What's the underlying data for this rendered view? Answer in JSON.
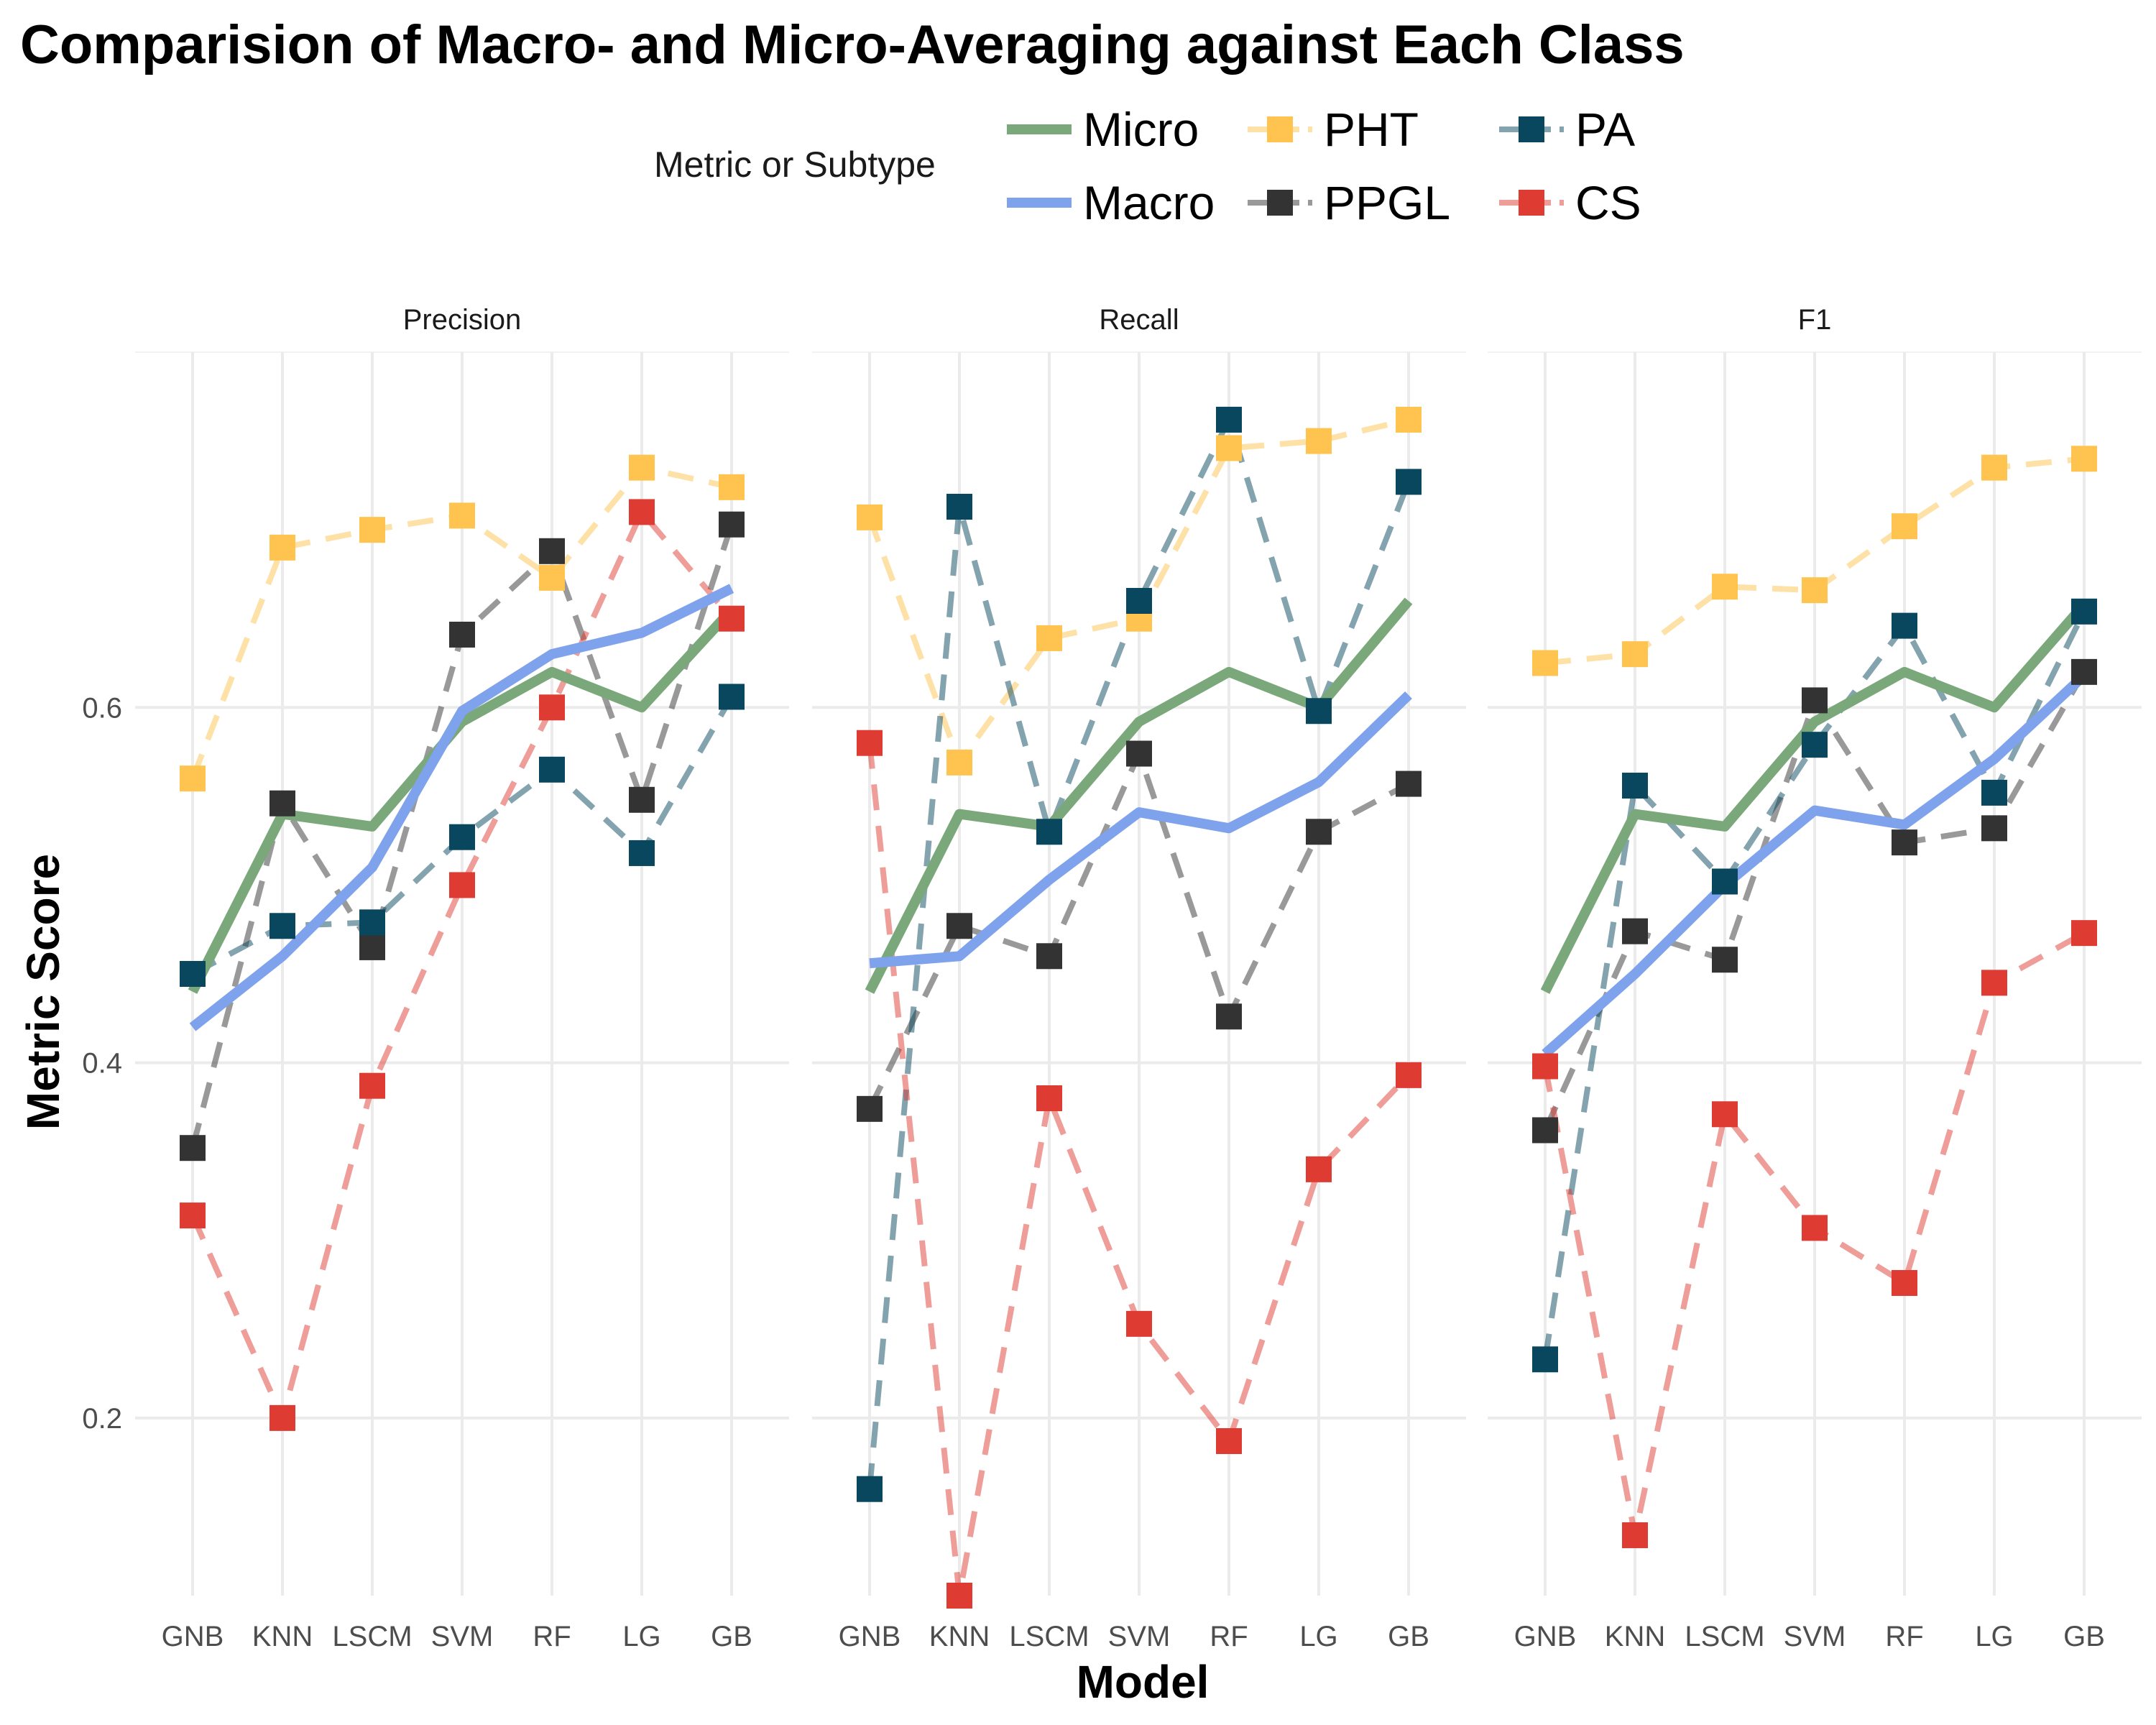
{
  "chart_data": {
    "type": "line",
    "title": "Comparision of Macro- and Micro-Averaging against Each Class",
    "xlabel": "Model",
    "ylabel": "Metric Score",
    "legend_title": "Metric or Subtype",
    "legend_position": "top",
    "grid": true,
    "ylim": [
      0.1,
      0.8
    ],
    "yticks": [
      0.2,
      0.4,
      0.6
    ],
    "y_tick_labels": [
      "0.2",
      "0.4",
      "0.6"
    ],
    "categories": [
      "GNB",
      "KNN",
      "LSCM",
      "SVM",
      "RF",
      "LG",
      "GB"
    ],
    "series_styles": [
      {
        "name": "Micro",
        "kind": "line",
        "color": "#7aa87a"
      },
      {
        "name": "Macro",
        "kind": "line",
        "color": "#7fa2ec"
      },
      {
        "name": "PHT",
        "kind": "point",
        "color": "#fec44f"
      },
      {
        "name": "PPGL",
        "kind": "point",
        "color": "#333333"
      },
      {
        "name": "PA",
        "kind": "point",
        "color": "#08475e"
      },
      {
        "name": "CS",
        "kind": "point",
        "color": "#de3b32"
      }
    ],
    "panels": [
      {
        "name": "Precision",
        "series": [
          {
            "name": "Micro",
            "values": [
              0.44,
              0.54,
              0.533,
              0.592,
              0.62,
              0.6,
              0.655
            ]
          },
          {
            "name": "Macro",
            "values": [
              0.42,
              0.46,
              0.51,
              0.598,
              0.63,
              0.642,
              0.667
            ]
          },
          {
            "name": "PHT",
            "values": [
              0.56,
              0.69,
              0.7,
              0.708,
              0.673,
              0.735,
              0.724
            ]
          },
          {
            "name": "PPGL",
            "values": [
              0.352,
              0.546,
              0.465,
              0.641,
              0.688,
              0.548,
              0.703
            ]
          },
          {
            "name": "PA",
            "values": [
              0.45,
              0.477,
              0.479,
              0.527,
              0.565,
              0.518,
              0.606
            ]
          },
          {
            "name": "CS",
            "values": [
              0.314,
              0.2,
              0.387,
              0.5,
              0.6,
              0.71,
              0.65
            ]
          }
        ]
      },
      {
        "name": "Recall",
        "series": [
          {
            "name": "Micro",
            "values": [
              0.44,
              0.54,
              0.533,
              0.592,
              0.62,
              0.6,
              0.66
            ]
          },
          {
            "name": "Macro",
            "values": [
              0.456,
              0.46,
              0.503,
              0.541,
              0.532,
              0.558,
              0.607
            ]
          },
          {
            "name": "PHT",
            "values": [
              0.707,
              0.569,
              0.639,
              0.65,
              0.746,
              0.75,
              0.762
            ]
          },
          {
            "name": "PPGL",
            "values": [
              0.374,
              0.477,
              0.46,
              0.574,
              0.426,
              0.53,
              0.557
            ]
          },
          {
            "name": "PA",
            "values": [
              0.16,
              0.713,
              0.53,
              0.66,
              0.762,
              0.598,
              0.727
            ]
          },
          {
            "name": "CS",
            "values": [
              0.58,
              0.1,
              0.38,
              0.253,
              0.187,
              0.34,
              0.393
            ]
          }
        ]
      },
      {
        "name": "F1",
        "series": [
          {
            "name": "Micro",
            "values": [
              0.44,
              0.54,
              0.533,
              0.592,
              0.62,
              0.6,
              0.658
            ]
          },
          {
            "name": "Macro",
            "values": [
              0.405,
              0.45,
              0.5,
              0.542,
              0.534,
              0.571,
              0.618
            ]
          },
          {
            "name": "PHT",
            "values": [
              0.625,
              0.63,
              0.668,
              0.666,
              0.702,
              0.735,
              0.74
            ]
          },
          {
            "name": "PPGL",
            "values": [
              0.362,
              0.474,
              0.458,
              0.604,
              0.524,
              0.532,
              0.62
            ]
          },
          {
            "name": "PA",
            "values": [
              0.233,
              0.556,
              0.502,
              0.579,
              0.646,
              0.552,
              0.654
            ]
          },
          {
            "name": "CS",
            "values": [
              0.398,
              0.134,
              0.371,
              0.307,
              0.276,
              0.445,
              0.473
            ]
          }
        ]
      }
    ]
  }
}
